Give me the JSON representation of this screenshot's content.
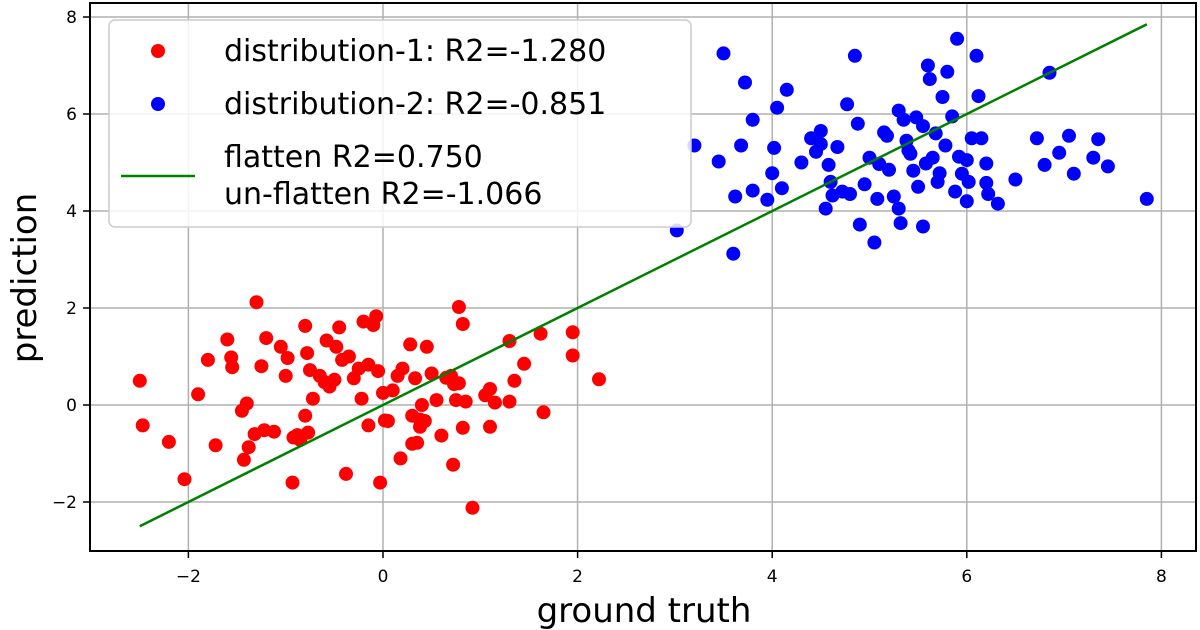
{
  "chart_data": {
    "type": "scatter",
    "title": "",
    "xlabel": "ground truth",
    "ylabel": "prediction",
    "xlim": [
      -3.0,
      8.35
    ],
    "ylim": [
      -3.05,
      8.35
    ],
    "xticks": [
      -2,
      0,
      2,
      4,
      6,
      8
    ],
    "yticks": [
      -2,
      0,
      2,
      4,
      6,
      8
    ],
    "xtick_labels": [
      "−2",
      "0",
      "2",
      "4",
      "6",
      "8"
    ],
    "ytick_labels": [
      "−2",
      "0",
      "2",
      "4",
      "6",
      "8"
    ],
    "grid": true,
    "legend_position": "upper left",
    "legend": [
      {
        "label": "distribution-1: R2=-1.280",
        "marker": "circle",
        "color": "#ff0000"
      },
      {
        "label": "distribution-2: R2=-0.851",
        "marker": "circle",
        "color": "#0000ff"
      },
      {
        "label": "flatten R2=0.750",
        "label2": "un-flatten R2=-1.066",
        "marker": "line",
        "color": "#008000"
      }
    ],
    "series": [
      {
        "name": "distribution-1: R2=-1.280",
        "type": "scatter",
        "color": "#ff0000",
        "points": [
          [
            -2.5,
            0.5
          ],
          [
            -2.47,
            -0.42
          ],
          [
            -2.2,
            -0.76
          ],
          [
            -2.04,
            -1.53
          ],
          [
            -1.9,
            0.22
          ],
          [
            -1.8,
            0.93
          ],
          [
            -1.72,
            -0.83
          ],
          [
            -1.6,
            1.35
          ],
          [
            -1.56,
            0.98
          ],
          [
            -1.55,
            0.78
          ],
          [
            -1.45,
            -0.12
          ],
          [
            -1.43,
            -1.13
          ],
          [
            -1.4,
            0.03
          ],
          [
            -1.38,
            -0.87
          ],
          [
            -1.3,
            2.12
          ],
          [
            -1.32,
            -0.6
          ],
          [
            -1.25,
            0.8
          ],
          [
            -1.22,
            -0.52
          ],
          [
            -1.2,
            1.38
          ],
          [
            -1.12,
            -0.55
          ],
          [
            -1.05,
            1.2
          ],
          [
            -1.0,
            0.6
          ],
          [
            -0.98,
            0.97
          ],
          [
            -0.93,
            -1.6
          ],
          [
            -0.92,
            -0.67
          ],
          [
            -0.88,
            -0.62
          ],
          [
            -0.85,
            -0.72
          ],
          [
            -0.8,
            1.63
          ],
          [
            -0.78,
            1.07
          ],
          [
            -0.8,
            -0.22
          ],
          [
            -0.77,
            -0.57
          ],
          [
            -0.75,
            0.72
          ],
          [
            -0.72,
            0.13
          ],
          [
            -0.65,
            0.6
          ],
          [
            -0.6,
            0.47
          ],
          [
            -0.58,
            1.33
          ],
          [
            -0.55,
            0.38
          ],
          [
            -0.5,
            0.52
          ],
          [
            -0.48,
            1.2
          ],
          [
            -0.45,
            1.6
          ],
          [
            -0.42,
            0.93
          ],
          [
            -0.38,
            -1.42
          ],
          [
            -0.35,
            1.0
          ],
          [
            -0.3,
            0.55
          ],
          [
            -0.25,
            0.75
          ],
          [
            -0.22,
            0.13
          ],
          [
            -0.2,
            1.72
          ],
          [
            -0.15,
            0.83
          ],
          [
            -0.15,
            -0.42
          ],
          [
            -0.1,
            1.65
          ],
          [
            -0.07,
            1.83
          ],
          [
            -0.05,
            0.7
          ],
          [
            -0.03,
            -1.6
          ],
          [
            0.0,
            0.25
          ],
          [
            0.02,
            -0.32
          ],
          [
            0.05,
            -0.33
          ],
          [
            0.1,
            0.3
          ],
          [
            0.15,
            0.6
          ],
          [
            0.2,
            0.75
          ],
          [
            0.18,
            -1.1
          ],
          [
            0.28,
            1.25
          ],
          [
            0.3,
            -0.22
          ],
          [
            0.3,
            -0.8
          ],
          [
            0.33,
            0.55
          ],
          [
            0.35,
            -0.78
          ],
          [
            0.38,
            -0.3
          ],
          [
            0.38,
            -0.45
          ],
          [
            0.4,
            0.0
          ],
          [
            0.43,
            -0.33
          ],
          [
            0.45,
            1.2
          ],
          [
            0.5,
            0.65
          ],
          [
            0.55,
            0.1
          ],
          [
            0.6,
            -0.63
          ],
          [
            0.65,
            0.56
          ],
          [
            0.7,
            0.6
          ],
          [
            0.72,
            -1.23
          ],
          [
            0.73,
            0.43
          ],
          [
            0.75,
            0.1
          ],
          [
            0.78,
            0.45
          ],
          [
            0.78,
            2.02
          ],
          [
            0.82,
            1.67
          ],
          [
            0.82,
            -0.47
          ],
          [
            0.85,
            0.07
          ],
          [
            0.92,
            -2.12
          ],
          [
            1.05,
            0.2
          ],
          [
            1.1,
            0.33
          ],
          [
            1.1,
            -0.45
          ],
          [
            1.15,
            0.05
          ],
          [
            1.3,
            0.07
          ],
          [
            1.3,
            1.32
          ],
          [
            1.35,
            0.5
          ],
          [
            1.45,
            0.85
          ],
          [
            1.62,
            1.47
          ],
          [
            1.65,
            -0.15
          ],
          [
            1.95,
            1.5
          ],
          [
            1.95,
            1.02
          ],
          [
            2.22,
            0.53
          ]
        ]
      },
      {
        "name": "distribution-2: R2=-0.851",
        "type": "scatter",
        "color": "#0000ff",
        "points": [
          [
            3.02,
            3.6
          ],
          [
            3.2,
            5.35
          ],
          [
            3.45,
            5.02
          ],
          [
            3.5,
            7.25
          ],
          [
            3.6,
            3.12
          ],
          [
            3.62,
            4.3
          ],
          [
            3.68,
            5.35
          ],
          [
            3.72,
            6.65
          ],
          [
            3.8,
            5.88
          ],
          [
            3.8,
            4.42
          ],
          [
            3.95,
            4.23
          ],
          [
            4.0,
            4.78
          ],
          [
            4.02,
            5.3
          ],
          [
            4.05,
            6.13
          ],
          [
            4.1,
            4.47
          ],
          [
            4.15,
            6.5
          ],
          [
            4.3,
            5.0
          ],
          [
            4.4,
            5.5
          ],
          [
            4.45,
            5.22
          ],
          [
            4.5,
            5.65
          ],
          [
            4.5,
            5.38
          ],
          [
            4.55,
            4.05
          ],
          [
            4.58,
            4.95
          ],
          [
            4.6,
            4.6
          ],
          [
            4.62,
            4.32
          ],
          [
            4.67,
            5.32
          ],
          [
            4.77,
            6.2
          ],
          [
            4.8,
            4.35
          ],
          [
            4.85,
            7.2
          ],
          [
            4.88,
            5.8
          ],
          [
            4.9,
            3.72
          ],
          [
            4.95,
            4.55
          ],
          [
            5.0,
            5.1
          ],
          [
            5.05,
            3.35
          ],
          [
            5.1,
            4.97
          ],
          [
            5.15,
            5.62
          ],
          [
            5.2,
            4.85
          ],
          [
            5.25,
            4.3
          ],
          [
            5.3,
            4.05
          ],
          [
            5.3,
            6.07
          ],
          [
            5.32,
            3.75
          ],
          [
            5.35,
            5.88
          ],
          [
            5.38,
            5.45
          ],
          [
            5.4,
            5.25
          ],
          [
            5.42,
            5.18
          ],
          [
            5.45,
            4.83
          ],
          [
            5.5,
            4.5
          ],
          [
            5.55,
            5.75
          ],
          [
            5.55,
            3.68
          ],
          [
            5.6,
            7.0
          ],
          [
            5.62,
            6.72
          ],
          [
            5.65,
            5.1
          ],
          [
            5.7,
            4.6
          ],
          [
            5.72,
            4.78
          ],
          [
            5.75,
            6.35
          ],
          [
            5.78,
            5.35
          ],
          [
            5.8,
            6.87
          ],
          [
            5.85,
            5.95
          ],
          [
            5.88,
            4.4
          ],
          [
            5.9,
            7.55
          ],
          [
            5.92,
            5.12
          ],
          [
            5.95,
            4.77
          ],
          [
            6.0,
            5.05
          ],
          [
            6.0,
            4.2
          ],
          [
            6.02,
            4.6
          ],
          [
            6.05,
            5.5
          ],
          [
            6.1,
            7.2
          ],
          [
            6.12,
            6.37
          ],
          [
            6.15,
            5.5
          ],
          [
            6.2,
            4.98
          ],
          [
            6.2,
            4.58
          ],
          [
            6.22,
            4.35
          ],
          [
            6.32,
            4.15
          ],
          [
            6.5,
            4.65
          ],
          [
            6.72,
            5.5
          ],
          [
            6.8,
            4.95
          ],
          [
            6.85,
            6.85
          ],
          [
            6.95,
            5.2
          ],
          [
            7.05,
            5.55
          ],
          [
            7.1,
            4.77
          ],
          [
            7.3,
            5.1
          ],
          [
            7.35,
            5.48
          ],
          [
            7.45,
            4.92
          ],
          [
            7.85,
            4.25
          ],
          [
            5.18,
            5.55
          ],
          [
            5.48,
            5.93
          ],
          [
            5.58,
            4.98
          ],
          [
            4.72,
            4.4
          ],
          [
            5.08,
            4.25
          ],
          [
            5.68,
            5.6
          ]
        ]
      },
      {
        "name": "flatten R2=0.750 / un-flatten R2=-1.066",
        "type": "line",
        "color": "#008000",
        "points": [
          [
            -2.5,
            -2.5
          ],
          [
            7.85,
            7.85
          ]
        ]
      }
    ]
  },
  "axes": {
    "xlabel": "ground truth",
    "ylabel": "prediction"
  },
  "legend": {
    "item1": "distribution-1: R2=-1.280",
    "item2": "distribution-2: R2=-0.851",
    "item3_line1": "flatten R2=0.750",
    "item3_line2": "un-flatten R2=-1.066"
  }
}
